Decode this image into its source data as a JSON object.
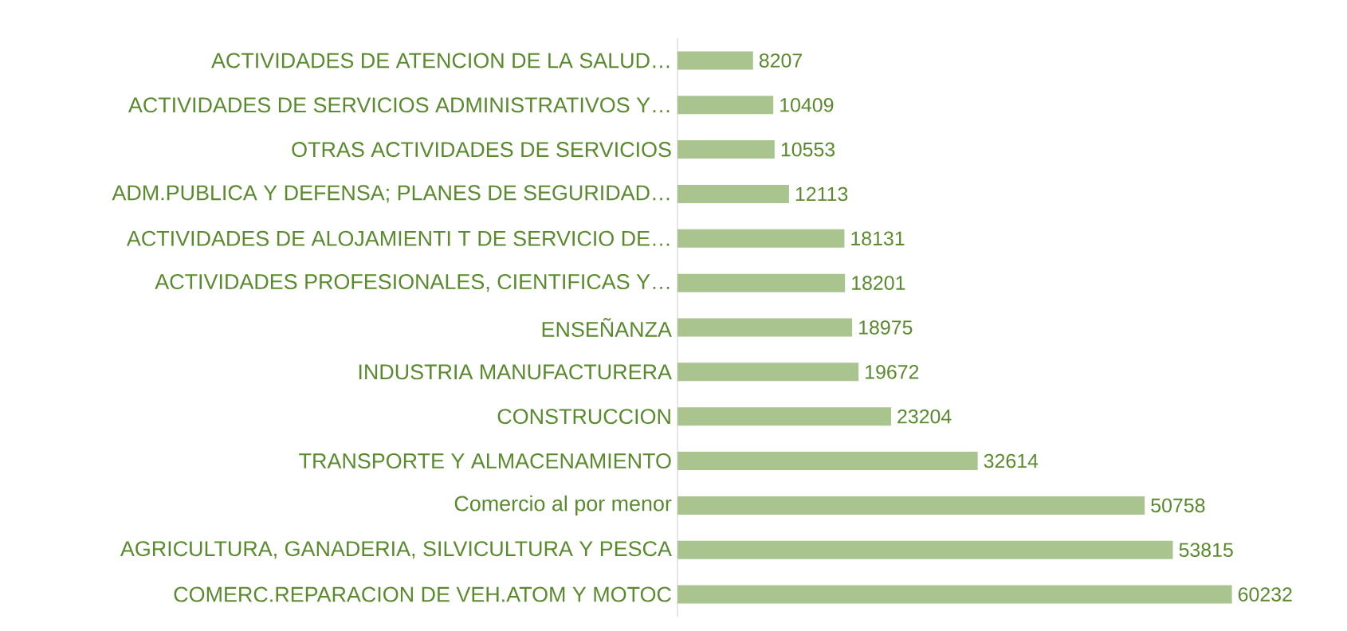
{
  "chart_data": {
    "type": "bar",
    "orientation": "horizontal",
    "data_labels": true,
    "color": "#a9c48f",
    "categories": [
      "ACTIVIDADES DE ATENCION DE LA SALUD…",
      "ACTIVIDADES DE SERVICIOS ADMINISTRATIVOS  Y…",
      "OTRAS ACTIVIDADES DE SERVICIOS",
      "ADM.PUBLICA Y DEFENSA; PLANES DE SEGURIDAD…",
      "ACTIVIDADES DE ALOJAMIENTI T DE SERVICIO DE…",
      "ACTIVIDADES PROFESIONALES, CIENTIFICAS Y…",
      "ENSEÑANZA",
      "INDUSTRIA MANUFACTURERA",
      "CONSTRUCCION",
      "TRANSPORTE Y ALMACENAMIENTO",
      "Comercio al por menor",
      "AGRICULTURA, GANADERIA, SILVICULTURA Y PESCA",
      "COMERC.REPARACION DE VEH.ATOM Y MOTOC"
    ],
    "values": [
      8207,
      10409,
      10553,
      12113,
      18131,
      18201,
      18975,
      19672,
      23204,
      32614,
      50758,
      53815,
      60232
    ]
  }
}
